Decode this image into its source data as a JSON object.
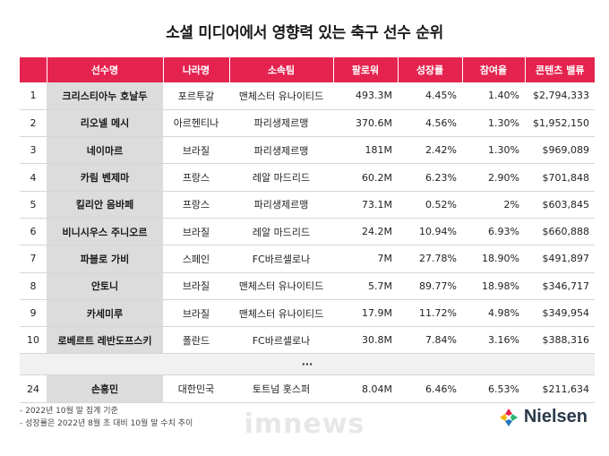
{
  "title": "소셜 미디어에서 영향력 있는 축구 선수 순위",
  "headers": {
    "rank": "",
    "name": "선수명",
    "country": "나라명",
    "team": "소속팀",
    "followers": "팔로워",
    "growth": "성장률",
    "engagement": "참여율",
    "content_value": "콘텐츠 밸류"
  },
  "rows": [
    {
      "rank": "1",
      "name": "크리스티아누 호날두",
      "country": "포르투갈",
      "team": "맨체스터 유나이티드",
      "followers": "493.3M",
      "growth": "4.45%",
      "engagement": "1.40%",
      "content_value": "$2,794,333"
    },
    {
      "rank": "2",
      "name": "리오넬 메시",
      "country": "아르헨티나",
      "team": "파리생제르맹",
      "followers": "370.6M",
      "growth": "4.56%",
      "engagement": "1.30%",
      "content_value": "$1,952,150"
    },
    {
      "rank": "3",
      "name": "네이마르",
      "country": "브라질",
      "team": "파리생제르맹",
      "followers": "181M",
      "growth": "2.42%",
      "engagement": "1.30%",
      "content_value": "$969,089"
    },
    {
      "rank": "4",
      "name": "카림 벤제마",
      "country": "프랑스",
      "team": "레알 마드리드",
      "followers": "60.2M",
      "growth": "6.23%",
      "engagement": "2.90%",
      "content_value": "$701,848"
    },
    {
      "rank": "5",
      "name": "킬리안 음바페",
      "country": "프랑스",
      "team": "파리생제르맹",
      "followers": "73.1M",
      "growth": "0.52%",
      "engagement": "2%",
      "content_value": "$603,845"
    },
    {
      "rank": "6",
      "name": "비니시우스 주니오르",
      "country": "브라질",
      "team": "레알 마드리드",
      "followers": "24.2M",
      "growth": "10.94%",
      "engagement": "6.93%",
      "content_value": "$660,888"
    },
    {
      "rank": "7",
      "name": "파블로 가비",
      "country": "스페인",
      "team": "FC바르셀로나",
      "followers": "7M",
      "growth": "27.78%",
      "engagement": "18.90%",
      "content_value": "$491,897"
    },
    {
      "rank": "8",
      "name": "안토니",
      "country": "브라질",
      "team": "맨체스터 유나이티드",
      "followers": "5.7M",
      "growth": "89.77%",
      "engagement": "18.98%",
      "content_value": "$346,717"
    },
    {
      "rank": "9",
      "name": "카세미루",
      "country": "브라질",
      "team": "맨체스터 유나이티드",
      "followers": "17.9M",
      "growth": "11.72%",
      "engagement": "4.98%",
      "content_value": "$349,954"
    },
    {
      "rank": "10",
      "name": "로베르트 레반도프스키",
      "country": "폴란드",
      "team": "FC바르셀로나",
      "followers": "30.8M",
      "growth": "7.84%",
      "engagement": "3.16%",
      "content_value": "$388,316"
    }
  ],
  "ellipsis": "···",
  "last_row": {
    "rank": "24",
    "name": "손흥민",
    "country": "대한민국",
    "team": "토트넘 홋스퍼",
    "followers": "8.04M",
    "growth": "6.46%",
    "engagement": "6.53%",
    "content_value": "$211,634"
  },
  "notes": [
    "-  2022년 10월 말 집계 기준",
    "-  성장률은 2022년 8월 초 대비 10월 말 수치 추이"
  ],
  "watermark": "imnews",
  "logo": {
    "text": "Nielsen",
    "colors": [
      "#e5234f",
      "#2bb673",
      "#1f7ac2",
      "#f4b400"
    ]
  }
}
